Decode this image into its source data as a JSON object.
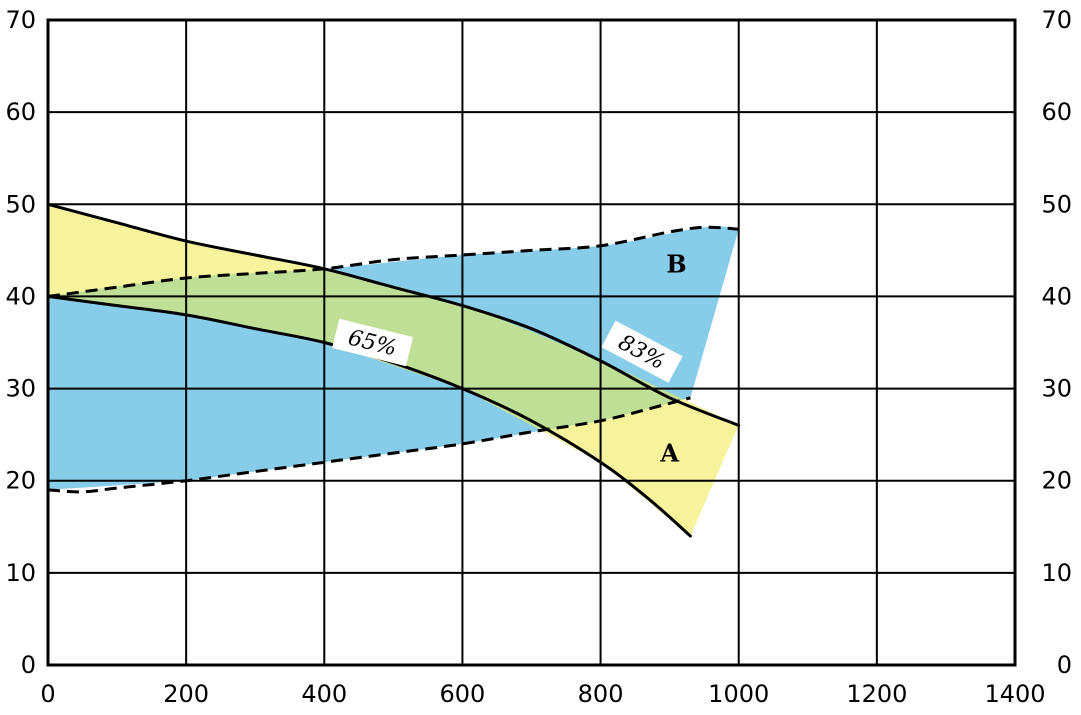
{
  "chart_data": {
    "type": "area",
    "title": "",
    "xlabel": "",
    "ylabel": "",
    "xlim": [
      0,
      1400
    ],
    "ylim": [
      0,
      70
    ],
    "x_ticks": [
      "0",
      "200",
      "400",
      "600",
      "800",
      "1000",
      "1200",
      "1400"
    ],
    "y_ticks": [
      "0",
      "10",
      "20",
      "30",
      "40",
      "50",
      "60",
      "70"
    ],
    "grid": true,
    "mirrored_y_axis": true,
    "regions": [
      {
        "name": "A",
        "color": "#f7f29c",
        "upper": [
          [
            0,
            50
          ],
          [
            200,
            46
          ],
          [
            400,
            43
          ],
          [
            600,
            39
          ],
          [
            800,
            33
          ],
          [
            1000,
            26
          ]
        ],
        "lower": [
          [
            0,
            40
          ],
          [
            200,
            38
          ],
          [
            400,
            35
          ],
          [
            600,
            30
          ],
          [
            800,
            22
          ],
          [
            930,
            14
          ]
        ]
      },
      {
        "name": "B",
        "color": "#87cdea",
        "upper": [
          [
            0,
            40
          ],
          [
            200,
            42
          ],
          [
            400,
            43
          ],
          [
            600,
            44.5
          ],
          [
            800,
            45.5
          ],
          [
            950,
            47.5
          ],
          [
            1000,
            47.3
          ]
        ],
        "lower": [
          [
            0,
            19
          ],
          [
            200,
            20
          ],
          [
            400,
            22
          ],
          [
            600,
            24
          ],
          [
            800,
            26.5
          ],
          [
            930,
            29
          ]
        ]
      }
    ],
    "overlap_color": "#c0df96",
    "series": [
      {
        "name": "83%",
        "style": "solid",
        "points": [
          [
            0,
            50
          ],
          [
            100,
            48
          ],
          [
            200,
            46
          ],
          [
            300,
            44.5
          ],
          [
            400,
            43
          ],
          [
            500,
            41
          ],
          [
            600,
            39
          ],
          [
            700,
            36.5
          ],
          [
            800,
            33
          ],
          [
            900,
            29
          ],
          [
            1000,
            26
          ]
        ]
      },
      {
        "name": "65%",
        "style": "solid",
        "points": [
          [
            0,
            40
          ],
          [
            100,
            39
          ],
          [
            200,
            38
          ],
          [
            300,
            36.5
          ],
          [
            400,
            35
          ],
          [
            500,
            32.8
          ],
          [
            600,
            30
          ],
          [
            700,
            26.5
          ],
          [
            800,
            22
          ],
          [
            870,
            18
          ],
          [
            930,
            14
          ]
        ]
      },
      {
        "name": "",
        "style": "dashed",
        "points": [
          [
            0,
            40
          ],
          [
            100,
            41
          ],
          [
            200,
            42
          ],
          [
            300,
            42.5
          ],
          [
            400,
            43
          ],
          [
            500,
            44
          ],
          [
            600,
            44.5
          ],
          [
            700,
            45
          ],
          [
            800,
            45.5
          ],
          [
            900,
            47
          ],
          [
            950,
            47.5
          ],
          [
            1000,
            47.3
          ]
        ]
      },
      {
        "name": "",
        "style": "dashed",
        "points": [
          [
            0,
            19
          ],
          [
            50,
            18.8
          ],
          [
            100,
            19.2
          ],
          [
            200,
            20
          ],
          [
            300,
            21
          ],
          [
            400,
            22
          ],
          [
            500,
            23
          ],
          [
            600,
            24
          ],
          [
            700,
            25.3
          ],
          [
            800,
            26.5
          ],
          [
            880,
            28
          ],
          [
            930,
            29
          ]
        ]
      }
    ],
    "annotations": [
      {
        "text": "A",
        "x": 900,
        "y": 23,
        "kind": "region"
      },
      {
        "text": "B",
        "x": 910,
        "y": 43.5,
        "kind": "region"
      },
      {
        "text": "65%",
        "x": 470,
        "y": 35,
        "kind": "curve",
        "angle": 14
      },
      {
        "text": "83%",
        "x": 860,
        "y": 34,
        "kind": "curve",
        "angle": 28
      }
    ]
  }
}
